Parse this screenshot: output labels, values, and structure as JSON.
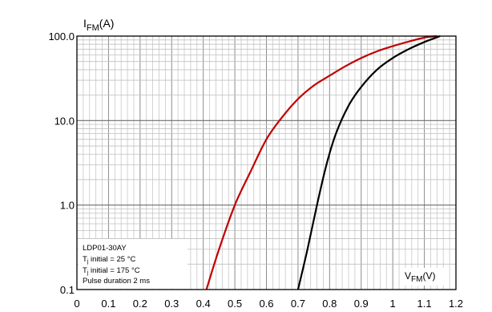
{
  "chart_data": {
    "type": "line",
    "y_scale": "log",
    "xlim": [
      0,
      1.2
    ],
    "ylim": [
      0.1,
      100
    ],
    "grid": true,
    "x_ticks": [
      "0",
      "0.1",
      "0.2",
      "0.3",
      "0.4",
      "0.5",
      "0.6",
      "0.7",
      "0.8",
      "0.9",
      "1",
      "1.1",
      "1.2"
    ],
    "y_ticks": [
      "0.1",
      "1.0",
      "10.0",
      "100.0"
    ],
    "y_label": {
      "main": "I",
      "sub": "FM",
      "unit": "(A)"
    },
    "x_label": {
      "main": "V",
      "sub": "FM",
      "unit": "(V)"
    },
    "legend": {
      "placement": "bottom-left",
      "part_number": "LDP01-30AY",
      "entries": [
        {
          "prefix": "T",
          "sub": "j",
          "text": " initial = 25 °C",
          "color": "#000000"
        },
        {
          "prefix": "T",
          "sub": "j",
          "text": " initial = 175 °C",
          "color": "#c00000"
        }
      ],
      "note": "Pulse duration 2 ms"
    },
    "series": [
      {
        "color": "#000000",
        "points": [
          [
            0.7,
            0.1
          ],
          [
            0.73,
            0.3
          ],
          [
            0.76,
            1.0
          ],
          [
            0.79,
            3.0
          ],
          [
            0.82,
            7.0
          ],
          [
            0.86,
            15.0
          ],
          [
            0.9,
            25.0
          ],
          [
            0.95,
            40.0
          ],
          [
            1.0,
            55.0
          ],
          [
            1.05,
            70.0
          ],
          [
            1.1,
            85.0
          ],
          [
            1.15,
            100.0
          ]
        ]
      },
      {
        "color": "#c00000",
        "points": [
          [
            0.41,
            0.1
          ],
          [
            0.45,
            0.3
          ],
          [
            0.5,
            1.0
          ],
          [
            0.55,
            2.5
          ],
          [
            0.6,
            6.0
          ],
          [
            0.65,
            11.0
          ],
          [
            0.7,
            18.0
          ],
          [
            0.75,
            26.0
          ],
          [
            0.8,
            34.0
          ],
          [
            0.85,
            44.0
          ],
          [
            0.9,
            55.0
          ],
          [
            0.95,
            66.0
          ],
          [
            1.0,
            76.0
          ],
          [
            1.05,
            86.0
          ],
          [
            1.1,
            96.0
          ],
          [
            1.14,
            100.0
          ]
        ]
      }
    ]
  }
}
